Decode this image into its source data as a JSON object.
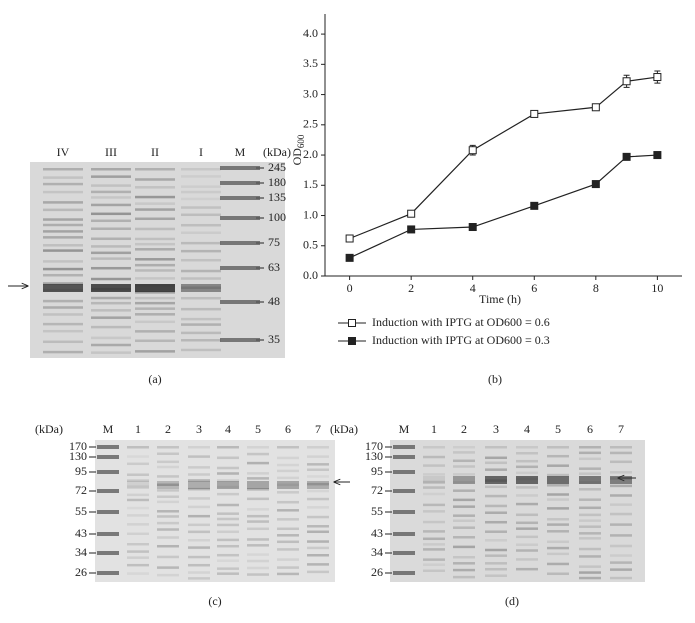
{
  "gel_a": {
    "unit": "(kDa)",
    "lanes": [
      "IV",
      "III",
      "II",
      "I",
      "M"
    ],
    "markers": [
      "245",
      "180",
      "135",
      "100",
      "75",
      "63",
      "48",
      "35"
    ],
    "caption": "(a)"
  },
  "chart_data": {
    "type": "line",
    "caption": "(b)",
    "xlabel": "Time (h)",
    "ylabel": [
      "OD",
      "600"
    ],
    "xlim": [
      -0.8,
      10.8
    ],
    "xticks": [
      0,
      2,
      4,
      6,
      8,
      10
    ],
    "ylim": [
      0,
      4.2
    ],
    "yticks": [
      {
        "value": 0,
        "label": "0.0"
      },
      0.5,
      {
        "value": 1,
        "label": "1.0"
      },
      1.5,
      {
        "value": 2,
        "label": "2.0"
      },
      2.5,
      {
        "value": 3,
        "label": "3.0"
      },
      3.5,
      {
        "value": 4,
        "label": "4.0"
      }
    ],
    "series": [
      {
        "name": "Induction with IPTG at OD600 = 0.6",
        "color": "#222222",
        "marker": "open-square",
        "x": [
          0,
          2,
          4,
          6,
          8,
          9,
          10
        ],
        "values": [
          0.62,
          1.03,
          2.08,
          2.68,
          2.79,
          3.22,
          3.29
        ],
        "errors": [
          0.02,
          0.03,
          0.08,
          0.02,
          0.04,
          0.1,
          0.1
        ]
      },
      {
        "name": "Induction with IPTG at OD600 = 0.3",
        "color": "#222222",
        "marker": "filled-square",
        "x": [
          0,
          2,
          4,
          6,
          8,
          9,
          10
        ],
        "values": [
          0.3,
          0.77,
          0.81,
          1.16,
          1.52,
          1.97,
          2.0
        ],
        "errors": [
          0.02,
          0.02,
          0.02,
          0.04,
          0.05,
          0.02,
          0.02
        ]
      }
    ]
  },
  "gel_c": {
    "unit": "(kDa)",
    "lanes": [
      "M",
      "1",
      "2",
      "3",
      "4",
      "5",
      "6",
      "7"
    ],
    "markers": [
      "170",
      "130",
      "95",
      "72",
      "55",
      "43",
      "34",
      "26"
    ],
    "caption": "(c)"
  },
  "gel_d": {
    "unit": "(kDa)",
    "lanes": [
      "M",
      "1",
      "2",
      "3",
      "4",
      "5",
      "6",
      "7"
    ],
    "markers": [
      "170",
      "130",
      "95",
      "72",
      "55",
      "43",
      "34",
      "26"
    ],
    "caption": "(d)"
  }
}
